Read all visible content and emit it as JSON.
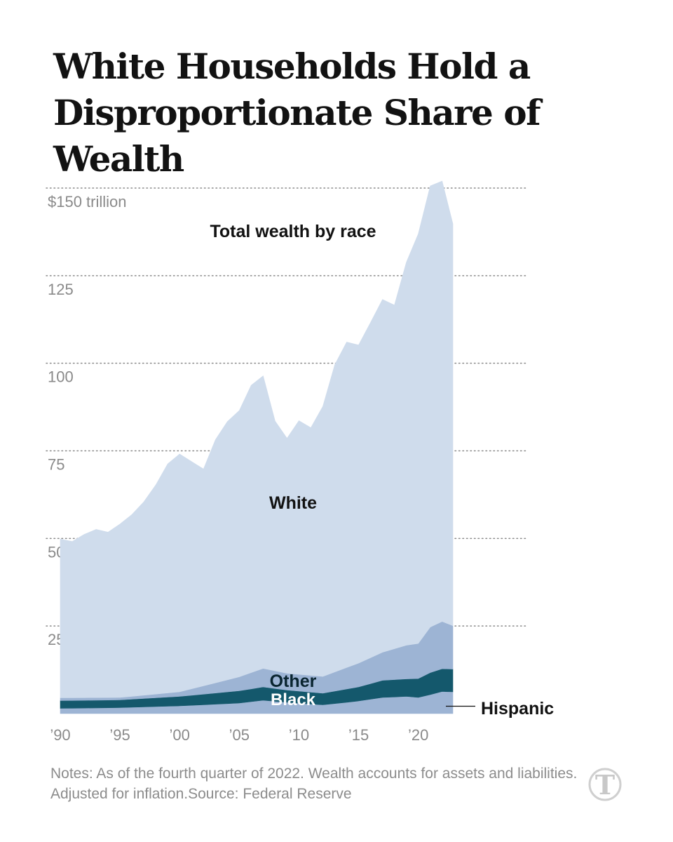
{
  "title": {
    "line1": "White Households Hold a",
    "line2": "Disproportionate Share of Wealth"
  },
  "chart_data": {
    "type": "area",
    "stacked": true,
    "subtitle": "Total wealth by race",
    "unit_label": "$150 trillion",
    "ylim": [
      0,
      152
    ],
    "xlim": [
      1990,
      2022.9
    ],
    "y_ticks": [
      {
        "value": 150,
        "label": "$150 trillion"
      },
      {
        "value": 125,
        "label": "125"
      },
      {
        "value": 100,
        "label": "100"
      },
      {
        "value": 75,
        "label": "75"
      },
      {
        "value": 50,
        "label": "50"
      },
      {
        "value": 25,
        "label": "25"
      }
    ],
    "x_ticks": [
      {
        "value": 1990,
        "label": "’90"
      },
      {
        "value": 1995,
        "label": "’95"
      },
      {
        "value": 2000,
        "label": "’00"
      },
      {
        "value": 2005,
        "label": "’05"
      },
      {
        "value": 2010,
        "label": "’10"
      },
      {
        "value": 2015,
        "label": "’15"
      },
      {
        "value": 2020,
        "label": "’20"
      }
    ],
    "grid": "dotted horizontal",
    "series": [
      {
        "name": "Hispanic",
        "label": "Hispanic",
        "color": "#9db4d4",
        "values": [
          [
            1990,
            1.5
          ],
          [
            1995,
            1.7
          ],
          [
            2000,
            2.2
          ],
          [
            2005,
            3.0
          ],
          [
            2007,
            3.8
          ],
          [
            2009,
            3.2
          ],
          [
            2012,
            2.5
          ],
          [
            2015,
            3.6
          ],
          [
            2017,
            4.6
          ],
          [
            2019,
            4.9
          ],
          [
            2020,
            4.6
          ],
          [
            2021,
            5.4
          ],
          [
            2022,
            6.3
          ],
          [
            2022.9,
            6.2
          ]
        ]
      },
      {
        "name": "Black",
        "label": "Black",
        "color": "#14586c",
        "values": [
          [
            1990,
            2.2
          ],
          [
            1995,
            2.2
          ],
          [
            2000,
            2.7
          ],
          [
            2005,
            3.5
          ],
          [
            2007,
            3.8
          ],
          [
            2009,
            3.5
          ],
          [
            2012,
            3.3
          ],
          [
            2015,
            4.0
          ],
          [
            2017,
            4.9
          ],
          [
            2019,
            5.0
          ],
          [
            2020,
            5.4
          ],
          [
            2021,
            6.3
          ],
          [
            2022,
            6.5
          ],
          [
            2022.9,
            6.5
          ]
        ]
      },
      {
        "name": "Other",
        "label": "Other",
        "color": "#9db4d4",
        "values": [
          [
            1990,
            0.8
          ],
          [
            1995,
            0.7
          ],
          [
            2000,
            1.3
          ],
          [
            2005,
            4.0
          ],
          [
            2007,
            5.3
          ],
          [
            2009,
            4.8
          ],
          [
            2012,
            4.8
          ],
          [
            2015,
            6.8
          ],
          [
            2017,
            8.0
          ],
          [
            2019,
            9.6
          ],
          [
            2020,
            10.0
          ],
          [
            2021,
            13.0
          ],
          [
            2022,
            13.5
          ],
          [
            2022.9,
            12.4
          ]
        ]
      },
      {
        "name": "White",
        "label": "White",
        "color": "#cfdcec",
        "values": [
          [
            1990,
            45.3
          ],
          [
            1991,
            44.6
          ],
          [
            1992,
            46.6
          ],
          [
            1993,
            48.0
          ],
          [
            1994,
            47.2
          ],
          [
            1995,
            49.5
          ],
          [
            1996,
            51.9
          ],
          [
            1997,
            55.2
          ],
          [
            1998,
            59.7
          ],
          [
            1999,
            65.4
          ],
          [
            2000,
            67.9
          ],
          [
            2001,
            64.9
          ],
          [
            2002,
            61.9
          ],
          [
            2003,
            69.4
          ],
          [
            2004,
            73.7
          ],
          [
            2005,
            76.0
          ],
          [
            2006,
            82.0
          ],
          [
            2007,
            83.5
          ],
          [
            2008,
            71.3
          ],
          [
            2009,
            67.1
          ],
          [
            2010,
            72.4
          ],
          [
            2011,
            70.7
          ],
          [
            2012,
            77.1
          ],
          [
            2013,
            87.7
          ],
          [
            2014,
            92.9
          ],
          [
            2015,
            90.8
          ],
          [
            2016,
            95.7
          ],
          [
            2017,
            100.7
          ],
          [
            2018,
            98.1
          ],
          [
            2019,
            109.3
          ],
          [
            2020,
            116.9
          ],
          [
            2021,
            125.9
          ],
          [
            2022,
            125.7
          ],
          [
            2022.9,
            114.7
          ]
        ]
      }
    ],
    "annotations": [
      {
        "name": "total-label",
        "text": "Total wealth by race"
      },
      {
        "name": "white-label",
        "text": "White"
      },
      {
        "name": "other-label",
        "text": "Other"
      },
      {
        "name": "black-label",
        "text": "Black"
      },
      {
        "name": "hispanic-label",
        "text": "Hispanic"
      }
    ]
  },
  "note": "Notes: As of the fourth quarter of 2022. Wealth accounts for assets and liabilities. Adjusted for inflation.Source: Federal Reserve",
  "logo": {
    "icon": "nyt-t-logo",
    "letter": "T",
    "color": "#c8c8c8"
  }
}
